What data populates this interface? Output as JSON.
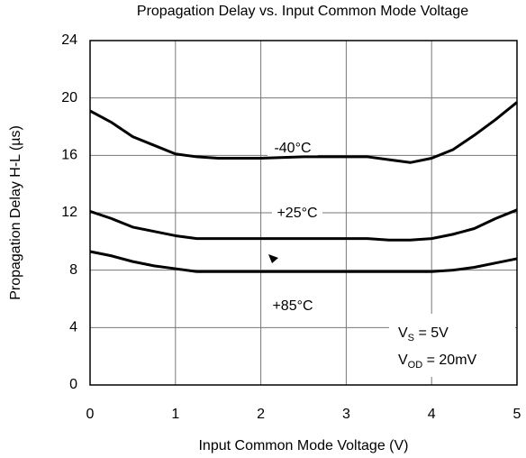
{
  "chart_data": {
    "type": "line",
    "title": "Propagation Delay vs. Input Common Mode Voltage",
    "xlabel": "Input Common Mode Voltage (V)",
    "ylabel": "Propagation Delay H-L (µs)",
    "x": [
      0,
      0.25,
      0.5,
      0.75,
      1,
      1.25,
      1.5,
      2,
      2.5,
      3,
      3.25,
      3.5,
      3.75,
      4,
      4.25,
      4.5,
      4.75,
      5
    ],
    "series": [
      {
        "name": "-40°C",
        "color": "#000000",
        "values": [
          19.1,
          18.3,
          17.3,
          16.7,
          16.1,
          15.9,
          15.8,
          15.8,
          15.9,
          15.9,
          15.9,
          15.7,
          15.5,
          15.8,
          16.4,
          17.4,
          18.5,
          19.7
        ]
      },
      {
        "name": "+25°C",
        "color": "#000000",
        "values": [
          12.1,
          11.6,
          11.0,
          10.7,
          10.4,
          10.2,
          10.2,
          10.2,
          10.2,
          10.2,
          10.2,
          10.1,
          10.1,
          10.2,
          10.5,
          10.9,
          11.6,
          12.2
        ]
      },
      {
        "name": "+85°C",
        "color": "#000000",
        "values": [
          9.3,
          9.0,
          8.6,
          8.3,
          8.1,
          7.9,
          7.9,
          7.9,
          7.9,
          7.9,
          7.9,
          7.9,
          7.9,
          7.9,
          8.0,
          8.2,
          8.5,
          8.8
        ]
      }
    ],
    "annotations": [
      {
        "main": "V",
        "sub": "S",
        "rest": " = 5V"
      },
      {
        "main": "V",
        "sub": "OD",
        "rest": " = 20mV"
      }
    ],
    "xlim": [
      0,
      5
    ],
    "xticks": [
      0,
      1,
      2,
      3,
      4,
      5
    ],
    "ylim": [
      0,
      24
    ],
    "yticks": [
      0,
      4,
      8,
      12,
      16,
      20,
      24
    ],
    "grid": true
  }
}
